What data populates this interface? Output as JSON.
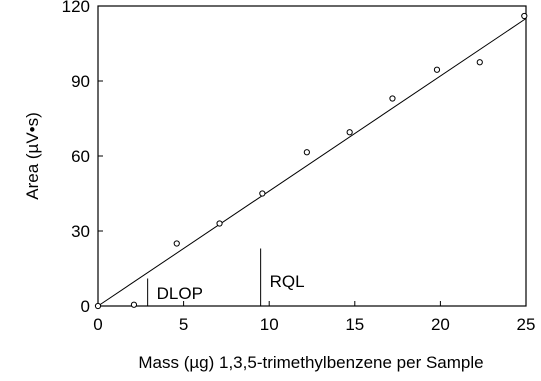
{
  "chart_data": {
    "type": "scatter",
    "xlabel": "Mass (µg) 1,3,5-trimethylbenzene per Sample",
    "ylabel": "Area (µV•s)",
    "xlim": [
      0,
      25
    ],
    "ylim": [
      0,
      120
    ],
    "xticks": [
      0,
      5,
      10,
      15,
      20,
      25
    ],
    "yticks": [
      0,
      30,
      60,
      90,
      120
    ],
    "grid": false,
    "points": {
      "x": [
        0.0,
        2.1,
        4.6,
        7.1,
        9.6,
        12.2,
        14.7,
        17.2,
        19.8,
        22.3,
        24.9
      ],
      "y": [
        0.0,
        0.5,
        25.0,
        33.0,
        45.0,
        61.5,
        69.5,
        83.0,
        94.5,
        97.5,
        116.0
      ]
    },
    "fit_line": {
      "x": [
        0,
        25
      ],
      "y": [
        0,
        115
      ]
    },
    "annotations": [
      {
        "label": "DLOP",
        "x": 2.9,
        "y_top": 11
      },
      {
        "label": "RQL",
        "x": 9.5,
        "y_top": 23
      }
    ]
  }
}
